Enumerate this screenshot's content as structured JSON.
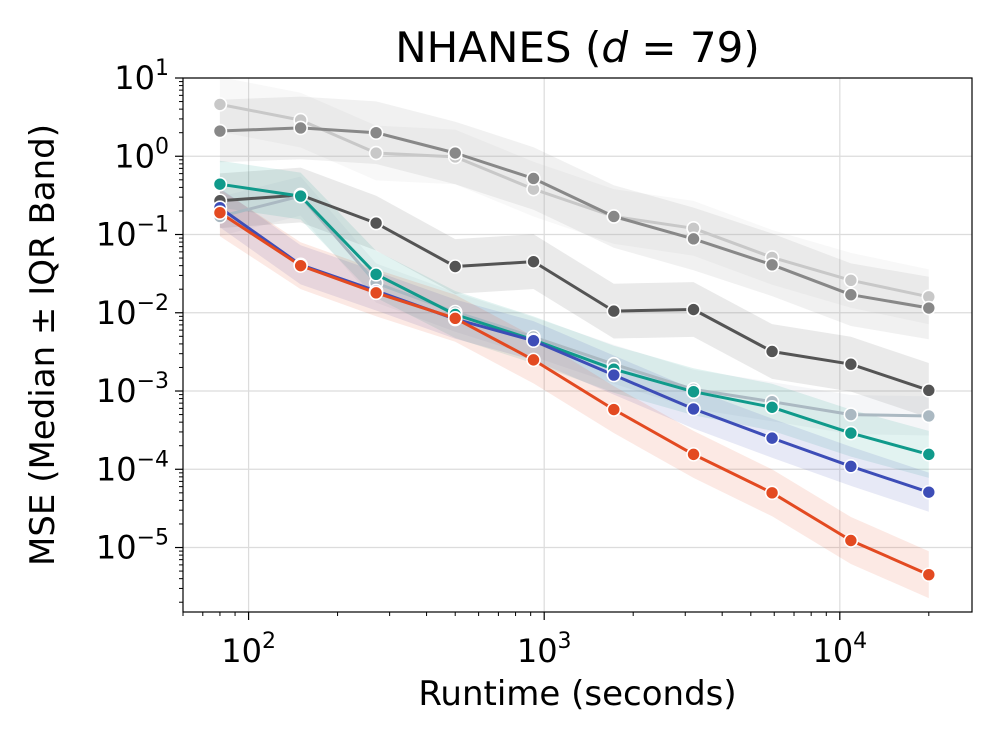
{
  "chart_data": {
    "type": "line",
    "title_prefix": "NHANES (",
    "title_var": "d",
    "title_suffix": " = 79)",
    "xlabel": "Runtime (seconds)",
    "ylabel": "MSE (Median ± IQR Band)",
    "x_scale": "log",
    "y_scale": "log",
    "xlim": [
      60,
      28000
    ],
    "ylim": [
      1.5e-06,
      10
    ],
    "x_ticks": [
      {
        "value": 100,
        "base": "10",
        "exp": "2"
      },
      {
        "value": 1000,
        "base": "10",
        "exp": "3"
      },
      {
        "value": 10000,
        "base": "10",
        "exp": "4"
      }
    ],
    "y_ticks": [
      {
        "value": 10,
        "base": "10",
        "exp": "1"
      },
      {
        "value": 1,
        "base": "10",
        "exp": "0"
      },
      {
        "value": 0.1,
        "base": "10",
        "exp": "−1"
      },
      {
        "value": 0.01,
        "base": "10",
        "exp": "−2"
      },
      {
        "value": 0.001,
        "base": "10",
        "exp": "−3"
      },
      {
        "value": 0.0001,
        "base": "10",
        "exp": "−4"
      },
      {
        "value": 1e-05,
        "base": "10",
        "exp": "−5"
      }
    ],
    "grid": true,
    "legend": false,
    "x": [
      80,
      150,
      270,
      500,
      920,
      1720,
      3200,
      5900,
      10900,
      20000
    ],
    "series": [
      {
        "color": "#c8c8c8",
        "band": 0.35,
        "values": [
          4.6,
          2.9,
          1.1,
          0.98,
          0.38,
          0.17,
          0.12,
          0.051,
          0.026,
          0.016
        ]
      },
      {
        "color": "#888888",
        "band": 0.4,
        "values": [
          2.1,
          2.3,
          2.0,
          1.1,
          0.52,
          0.17,
          0.088,
          0.041,
          0.017,
          0.0115
        ]
      },
      {
        "color": "#545454",
        "band": 0.35,
        "values": [
          0.27,
          0.32,
          0.14,
          0.039,
          0.045,
          0.0105,
          0.011,
          0.0032,
          0.0022,
          0.00102
        ]
      },
      {
        "color": "#abb9c2",
        "band": 0.25,
        "values": [
          0.17,
          0.31,
          0.024,
          0.0102,
          0.0049,
          0.0022,
          0.00105,
          0.00073,
          0.0005,
          0.00048
        ]
      },
      {
        "color": "#109a8b",
        "band": 0.3,
        "values": [
          0.44,
          0.31,
          0.031,
          0.0095,
          0.0045,
          0.0019,
          0.00098,
          0.00062,
          0.00029,
          0.000155
        ]
      },
      {
        "color": "#3d4db7",
        "band": 0.25,
        "values": [
          0.22,
          0.041,
          0.019,
          0.0083,
          0.0044,
          0.0016,
          0.00059,
          0.00025,
          0.000109,
          5.1e-05
        ]
      },
      {
        "color": "#e34a21",
        "band": 0.3,
        "values": [
          0.19,
          0.04,
          0.018,
          0.0085,
          0.0025,
          0.00058,
          0.000155,
          5e-05,
          1.23e-05,
          4.5e-06
        ]
      }
    ]
  }
}
